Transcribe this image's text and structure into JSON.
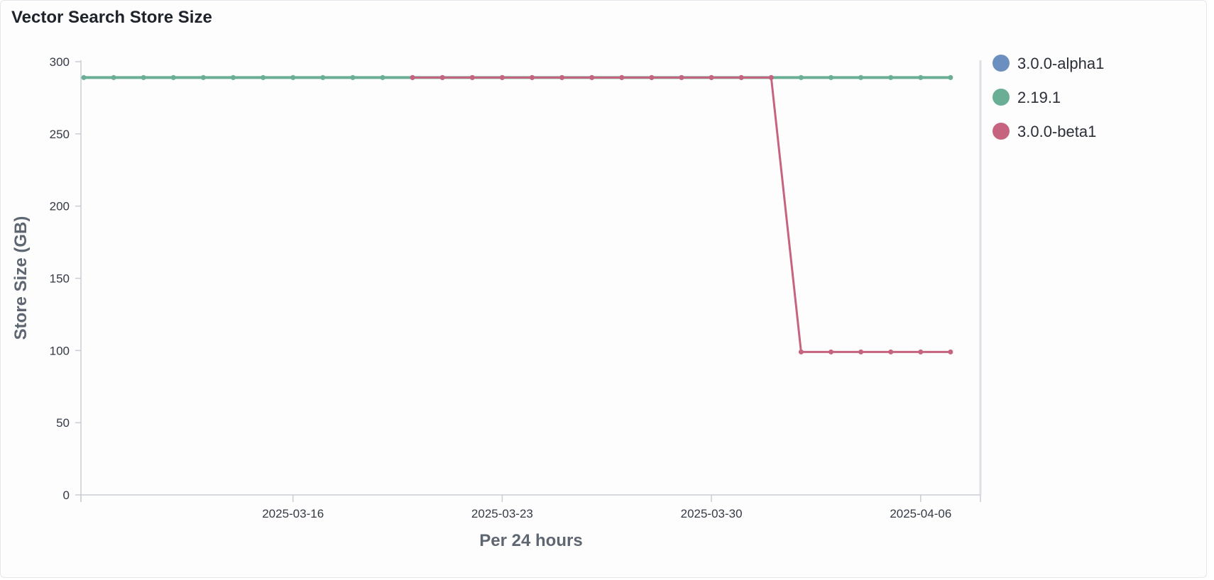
{
  "panel": {
    "title": "Vector Search Store Size"
  },
  "chart_data": {
    "type": "line",
    "title": "Vector Search Store Size",
    "xlabel": "Per 24 hours",
    "ylabel": "Store Size (GB)",
    "ylim": [
      0,
      300
    ],
    "yticks": [
      0,
      50,
      100,
      150,
      200,
      250,
      300
    ],
    "xlim": [
      "2025-03-09",
      "2025-04-07"
    ],
    "xticks": [
      "2025-03-16",
      "2025-03-23",
      "2025-03-30",
      "2025-04-06"
    ],
    "grid": false,
    "legend_position": "right",
    "series": [
      {
        "name": "3.0.0-alpha1",
        "color": "#6b8fbf",
        "x": [],
        "y": []
      },
      {
        "name": "2.19.1",
        "color": "#6aae95",
        "x": [
          "2025-03-09",
          "2025-03-10",
          "2025-03-11",
          "2025-03-12",
          "2025-03-13",
          "2025-03-14",
          "2025-03-15",
          "2025-03-16",
          "2025-03-17",
          "2025-03-18",
          "2025-03-19",
          "2025-03-20",
          "2025-03-21",
          "2025-03-22",
          "2025-03-23",
          "2025-03-24",
          "2025-03-25",
          "2025-03-26",
          "2025-03-27",
          "2025-03-28",
          "2025-03-29",
          "2025-03-30",
          "2025-03-31",
          "2025-04-01",
          "2025-04-02",
          "2025-04-03",
          "2025-04-04",
          "2025-04-05",
          "2025-04-06",
          "2025-04-07"
        ],
        "y": [
          289,
          289,
          289,
          289,
          289,
          289,
          289,
          289,
          289,
          289,
          289,
          289,
          289,
          289,
          289,
          289,
          289,
          289,
          289,
          289,
          289,
          289,
          289,
          289,
          289,
          289,
          289,
          289,
          289,
          289
        ]
      },
      {
        "name": "3.0.0-beta1",
        "color": "#c6647f",
        "x": [
          "2025-03-20",
          "2025-03-21",
          "2025-03-22",
          "2025-03-23",
          "2025-03-24",
          "2025-03-25",
          "2025-03-26",
          "2025-03-27",
          "2025-03-28",
          "2025-03-29",
          "2025-03-30",
          "2025-03-31",
          "2025-04-01",
          "2025-04-02",
          "2025-04-03",
          "2025-04-04",
          "2025-04-05",
          "2025-04-06",
          "2025-04-07"
        ],
        "y": [
          289,
          289,
          289,
          289,
          289,
          289,
          289,
          289,
          289,
          289,
          289,
          289,
          289,
          99,
          99,
          99,
          99,
          99,
          99
        ]
      }
    ]
  }
}
